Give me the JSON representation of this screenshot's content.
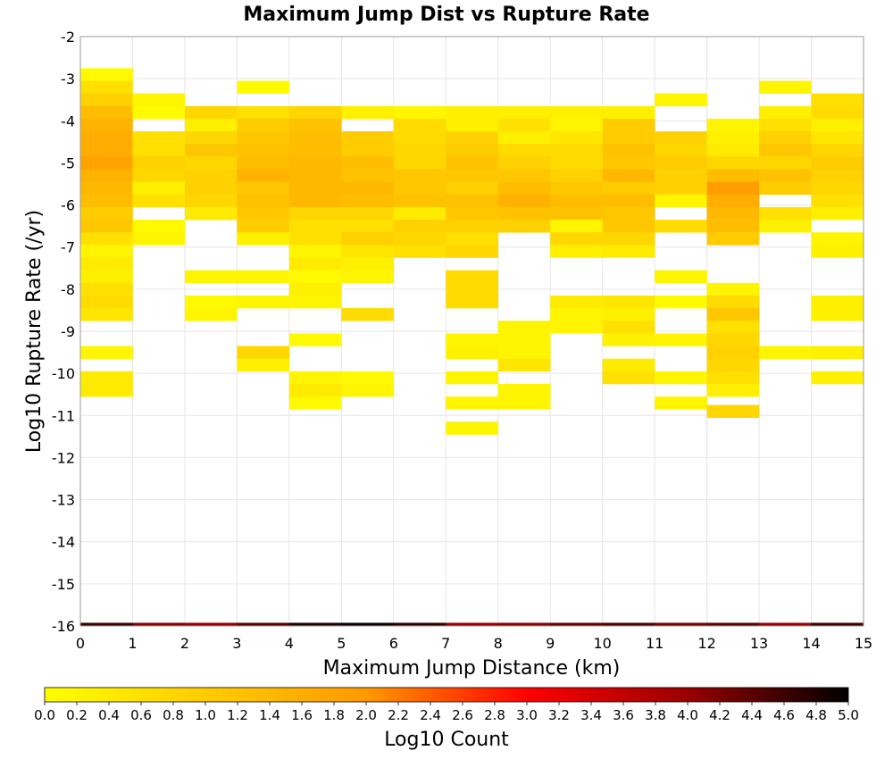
{
  "chart_data": {
    "type": "heatmap",
    "title": "Maximum Jump Dist vs Rupture Rate",
    "xlabel": "Maximum Jump Distance (km)",
    "ylabel": "Log10 Rupture Rate (/yr)",
    "colorbar_label": "Log10 Count",
    "xlim": [
      0,
      15
    ],
    "ylim": [
      -16,
      -2
    ],
    "x_ticks": [
      "0",
      "1",
      "2",
      "3",
      "4",
      "5",
      "6",
      "7",
      "8",
      "9",
      "10",
      "11",
      "12",
      "13",
      "14",
      "15"
    ],
    "y_ticks": [
      "-16",
      "-15",
      "-14",
      "-13",
      "-12",
      "-11",
      "-10",
      "-9",
      "-8",
      "-7",
      "-6",
      "-5",
      "-4",
      "-3",
      "-2"
    ],
    "colorbar_range": [
      0,
      5
    ],
    "colorbar_ticks": [
      "0.0",
      "0.2",
      "0.4",
      "0.6",
      "0.8",
      "1.0",
      "1.2",
      "1.4",
      "1.6",
      "1.8",
      "2.0",
      "2.2",
      "2.4",
      "2.6",
      "2.8",
      "3.0",
      "3.2",
      "3.4",
      "3.6",
      "3.8",
      "4.0",
      "4.2",
      "4.4",
      "4.6",
      "4.8",
      "5.0"
    ],
    "colormap": [
      "#ffff00",
      "#ffcc00",
      "#ff9900",
      "#ff0000",
      "#990000",
      "#000000"
    ],
    "x_bin_width": 1,
    "y_bin_height": 0.3,
    "cells": [
      [
        0,
        -2.9,
        0.1
      ],
      [
        0,
        -3.2,
        0.6
      ],
      [
        0,
        -3.5,
        0.9
      ],
      [
        0,
        -3.8,
        1.3
      ],
      [
        0,
        -4.1,
        1.5
      ],
      [
        0,
        -4.4,
        1.6
      ],
      [
        0,
        -4.7,
        1.6
      ],
      [
        0,
        -5.0,
        1.8
      ],
      [
        0,
        -5.3,
        1.5
      ],
      [
        0,
        -5.6,
        1.4
      ],
      [
        0,
        -5.9,
        1.3
      ],
      [
        0,
        -6.2,
        1.0
      ],
      [
        0,
        -6.5,
        1.1
      ],
      [
        0,
        -6.8,
        0.6
      ],
      [
        0,
        -7.1,
        0.2
      ],
      [
        0,
        -7.4,
        0.4
      ],
      [
        0,
        -7.7,
        0.3
      ],
      [
        0,
        -8.0,
        0.6
      ],
      [
        0,
        -8.3,
        0.7
      ],
      [
        0,
        -8.6,
        0.5
      ],
      [
        0,
        -9.5,
        0.2
      ],
      [
        0,
        -10.1,
        0.4
      ],
      [
        0,
        -10.4,
        0.4
      ],
      [
        1,
        -3.5,
        0.2
      ],
      [
        1,
        -3.8,
        0.1
      ],
      [
        1,
        -4.4,
        0.6
      ],
      [
        1,
        -4.7,
        0.6
      ],
      [
        1,
        -5.0,
        0.9
      ],
      [
        1,
        -5.3,
        0.8
      ],
      [
        1,
        -5.6,
        0.3
      ],
      [
        1,
        -5.9,
        0.6
      ],
      [
        1,
        -6.5,
        0.1
      ],
      [
        1,
        -6.8,
        0.2
      ],
      [
        2,
        -3.8,
        0.8
      ],
      [
        2,
        -4.1,
        0.3
      ],
      [
        2,
        -4.4,
        0.8
      ],
      [
        2,
        -4.7,
        1.1
      ],
      [
        2,
        -5.0,
        0.8
      ],
      [
        2,
        -5.3,
        0.9
      ],
      [
        2,
        -5.6,
        0.9
      ],
      [
        2,
        -5.9,
        0.8
      ],
      [
        2,
        -6.2,
        0.4
      ],
      [
        2,
        -7.7,
        0.2
      ],
      [
        2,
        -8.3,
        0.1
      ],
      [
        2,
        -8.6,
        0.2
      ],
      [
        3,
        -3.2,
        0.1
      ],
      [
        3,
        -3.8,
        0.6
      ],
      [
        3,
        -4.1,
        1.0
      ],
      [
        3,
        -4.4,
        1.1
      ],
      [
        3,
        -4.7,
        1.2
      ],
      [
        3,
        -5.0,
        1.3
      ],
      [
        3,
        -5.3,
        1.5
      ],
      [
        3,
        -5.6,
        1.1
      ],
      [
        3,
        -5.9,
        1.2
      ],
      [
        3,
        -6.2,
        1.1
      ],
      [
        3,
        -6.5,
        1.0
      ],
      [
        3,
        -6.8,
        0.3
      ],
      [
        3,
        -7.7,
        0.2
      ],
      [
        3,
        -8.3,
        0.2
      ],
      [
        3,
        -9.5,
        0.8
      ],
      [
        3,
        -9.8,
        0.3
      ],
      [
        4,
        -3.8,
        0.8
      ],
      [
        4,
        -4.1,
        1.2
      ],
      [
        4,
        -4.4,
        1.3
      ],
      [
        4,
        -4.7,
        1.3
      ],
      [
        4,
        -5.0,
        1.4
      ],
      [
        4,
        -5.3,
        1.4
      ],
      [
        4,
        -5.6,
        1.4
      ],
      [
        4,
        -5.9,
        1.4
      ],
      [
        4,
        -6.2,
        0.8
      ],
      [
        4,
        -6.5,
        0.6
      ],
      [
        4,
        -6.8,
        0.6
      ],
      [
        4,
        -7.1,
        0.2
      ],
      [
        4,
        -7.4,
        0.4
      ],
      [
        4,
        -7.7,
        0.1
      ],
      [
        4,
        -8.0,
        0.3
      ],
      [
        4,
        -8.3,
        0.2
      ],
      [
        4,
        -9.2,
        0.1
      ],
      [
        4,
        -10.1,
        0.2
      ],
      [
        4,
        -10.4,
        0.4
      ],
      [
        4,
        -10.7,
        0.1
      ],
      [
        5,
        -3.8,
        0.3
      ],
      [
        5,
        -4.4,
        1.0
      ],
      [
        5,
        -4.7,
        1.0
      ],
      [
        5,
        -5.0,
        1.3
      ],
      [
        5,
        -5.3,
        1.2
      ],
      [
        5,
        -5.6,
        1.4
      ],
      [
        5,
        -5.9,
        1.3
      ],
      [
        5,
        -6.2,
        0.8
      ],
      [
        5,
        -6.5,
        0.6
      ],
      [
        5,
        -6.8,
        0.9
      ],
      [
        5,
        -7.1,
        0.5
      ],
      [
        5,
        -7.4,
        0.3
      ],
      [
        5,
        -7.7,
        0.2
      ],
      [
        5,
        -8.6,
        0.7
      ],
      [
        5,
        -10.1,
        0.1
      ],
      [
        5,
        -10.4,
        0.2
      ],
      [
        6,
        -3.8,
        0.2
      ],
      [
        6,
        -4.1,
        0.7
      ],
      [
        6,
        -4.4,
        0.7
      ],
      [
        6,
        -4.7,
        0.8
      ],
      [
        6,
        -5.0,
        0.8
      ],
      [
        6,
        -5.3,
        1.1
      ],
      [
        6,
        -5.6,
        1.1
      ],
      [
        6,
        -5.9,
        1.2
      ],
      [
        6,
        -6.2,
        0.4
      ],
      [
        6,
        -6.5,
        0.9
      ],
      [
        6,
        -6.8,
        0.8
      ],
      [
        6,
        -7.1,
        0.6
      ],
      [
        7,
        -3.8,
        0.3
      ],
      [
        7,
        -4.1,
        0.3
      ],
      [
        7,
        -4.4,
        0.9
      ],
      [
        7,
        -4.7,
        1.0
      ],
      [
        7,
        -5.0,
        1.2
      ],
      [
        7,
        -5.3,
        1.1
      ],
      [
        7,
        -5.6,
        0.9
      ],
      [
        7,
        -5.9,
        1.2
      ],
      [
        7,
        -6.2,
        1.1
      ],
      [
        7,
        -6.5,
        0.9
      ],
      [
        7,
        -6.8,
        0.6
      ],
      [
        7,
        -7.1,
        0.8
      ],
      [
        7,
        -7.7,
        0.7
      ],
      [
        7,
        -8.0,
        0.7
      ],
      [
        7,
        -8.3,
        0.7
      ],
      [
        7,
        -9.2,
        0.2
      ],
      [
        7,
        -9.5,
        0.3
      ],
      [
        7,
        -10.1,
        0.2
      ],
      [
        7,
        -10.7,
        0.2
      ],
      [
        7,
        -11.3,
        0.2
      ],
      [
        8,
        -3.8,
        0.3
      ],
      [
        8,
        -4.1,
        0.6
      ],
      [
        8,
        -4.4,
        0.3
      ],
      [
        8,
        -4.7,
        0.7
      ],
      [
        8,
        -5.0,
        0.9
      ],
      [
        8,
        -5.3,
        1.1
      ],
      [
        8,
        -5.6,
        1.3
      ],
      [
        8,
        -5.9,
        1.5
      ],
      [
        8,
        -6.2,
        1.2
      ],
      [
        8,
        -6.5,
        0.9
      ],
      [
        8,
        -8.9,
        0.2
      ],
      [
        8,
        -9.2,
        0.2
      ],
      [
        8,
        -9.5,
        0.2
      ],
      [
        8,
        -9.8,
        0.5
      ],
      [
        8,
        -10.4,
        0.2
      ],
      [
        8,
        -10.7,
        0.2
      ],
      [
        9,
        -3.8,
        0.3
      ],
      [
        9,
        -4.1,
        0.2
      ],
      [
        9,
        -4.4,
        0.5
      ],
      [
        9,
        -4.7,
        0.7
      ],
      [
        9,
        -5.0,
        0.7
      ],
      [
        9,
        -5.3,
        0.9
      ],
      [
        9,
        -5.6,
        1.1
      ],
      [
        9,
        -5.9,
        1.3
      ],
      [
        9,
        -6.2,
        1.2
      ],
      [
        9,
        -6.5,
        0.2
      ],
      [
        9,
        -6.8,
        0.8
      ],
      [
        9,
        -7.1,
        0.3
      ],
      [
        9,
        -8.3,
        0.4
      ],
      [
        9,
        -8.6,
        0.2
      ],
      [
        9,
        -8.9,
        0.2
      ],
      [
        10,
        -3.8,
        0.3
      ],
      [
        10,
        -4.1,
        1.0
      ],
      [
        10,
        -4.4,
        1.0
      ],
      [
        10,
        -4.7,
        1.2
      ],
      [
        10,
        -5.0,
        1.1
      ],
      [
        10,
        -5.3,
        1.4
      ],
      [
        10,
        -5.6,
        1.0
      ],
      [
        10,
        -5.9,
        1.3
      ],
      [
        10,
        -6.2,
        1.1
      ],
      [
        10,
        -6.5,
        1.1
      ],
      [
        10,
        -6.8,
        0.8
      ],
      [
        10,
        -7.1,
        0.4
      ],
      [
        10,
        -8.3,
        0.5
      ],
      [
        10,
        -8.6,
        0.3
      ],
      [
        10,
        -8.9,
        0.6
      ],
      [
        10,
        -9.2,
        0.3
      ],
      [
        10,
        -9.8,
        0.4
      ],
      [
        10,
        -10.1,
        0.6
      ],
      [
        11,
        -3.5,
        0.2
      ],
      [
        11,
        -4.4,
        0.9
      ],
      [
        11,
        -4.7,
        0.8
      ],
      [
        11,
        -5.0,
        1.0
      ],
      [
        11,
        -5.3,
        0.9
      ],
      [
        11,
        -5.6,
        0.9
      ],
      [
        11,
        -5.9,
        0.2
      ],
      [
        11,
        -6.5,
        0.7
      ],
      [
        11,
        -7.7,
        0.2
      ],
      [
        11,
        -8.3,
        0.1
      ],
      [
        11,
        -9.2,
        0.2
      ],
      [
        11,
        -10.1,
        0.2
      ],
      [
        11,
        -10.7,
        0.2
      ],
      [
        12,
        -4.1,
        0.2
      ],
      [
        12,
        -4.4,
        0.3
      ],
      [
        12,
        -4.7,
        0.4
      ],
      [
        12,
        -5.0,
        0.8
      ],
      [
        12,
        -5.3,
        1.3
      ],
      [
        12,
        -5.6,
        1.9
      ],
      [
        12,
        -5.9,
        1.6
      ],
      [
        12,
        -6.2,
        1.4
      ],
      [
        12,
        -6.5,
        1.3
      ],
      [
        12,
        -6.8,
        1.0
      ],
      [
        12,
        -8.0,
        0.2
      ],
      [
        12,
        -8.3,
        0.7
      ],
      [
        12,
        -8.6,
        1.1
      ],
      [
        12,
        -8.9,
        0.6
      ],
      [
        12,
        -9.2,
        0.8
      ],
      [
        12,
        -9.5,
        0.9
      ],
      [
        12,
        -9.8,
        0.8
      ],
      [
        12,
        -10.1,
        0.6
      ],
      [
        12,
        -10.4,
        0.3
      ],
      [
        12,
        -10.9,
        0.8
      ],
      [
        13,
        -3.2,
        0.2
      ],
      [
        13,
        -3.8,
        0.3
      ],
      [
        13,
        -4.1,
        0.6
      ],
      [
        13,
        -4.4,
        0.9
      ],
      [
        13,
        -4.7,
        1.1
      ],
      [
        13,
        -5.0,
        0.8
      ],
      [
        13,
        -5.3,
        1.2
      ],
      [
        13,
        -5.6,
        1.0
      ],
      [
        13,
        -6.2,
        0.6
      ],
      [
        13,
        -6.5,
        0.3
      ],
      [
        13,
        -9.5,
        0.2
      ],
      [
        14,
        -3.5,
        0.6
      ],
      [
        14,
        -3.8,
        0.7
      ],
      [
        14,
        -4.1,
        0.3
      ],
      [
        14,
        -4.4,
        0.5
      ],
      [
        14,
        -4.7,
        0.8
      ],
      [
        14,
        -5.0,
        1.0
      ],
      [
        14,
        -5.3,
        0.9
      ],
      [
        14,
        -5.6,
        0.8
      ],
      [
        14,
        -5.9,
        0.6
      ],
      [
        14,
        -6.2,
        0.3
      ],
      [
        14,
        -6.8,
        0.2
      ],
      [
        14,
        -7.1,
        0.3
      ],
      [
        14,
        -8.3,
        0.3
      ],
      [
        14,
        -8.6,
        0.3
      ],
      [
        14,
        -9.5,
        0.3
      ],
      [
        14,
        -10.1,
        0.3
      ]
    ],
    "bottom_row": {
      "y": -16,
      "height": 0.15,
      "values": [
        4.6,
        4.1,
        4.0,
        4.4,
        4.8,
        4.9,
        4.7,
        4.0,
        4.1,
        4.3,
        4.5,
        4.2,
        4.4,
        4.0,
        4.6
      ]
    }
  }
}
